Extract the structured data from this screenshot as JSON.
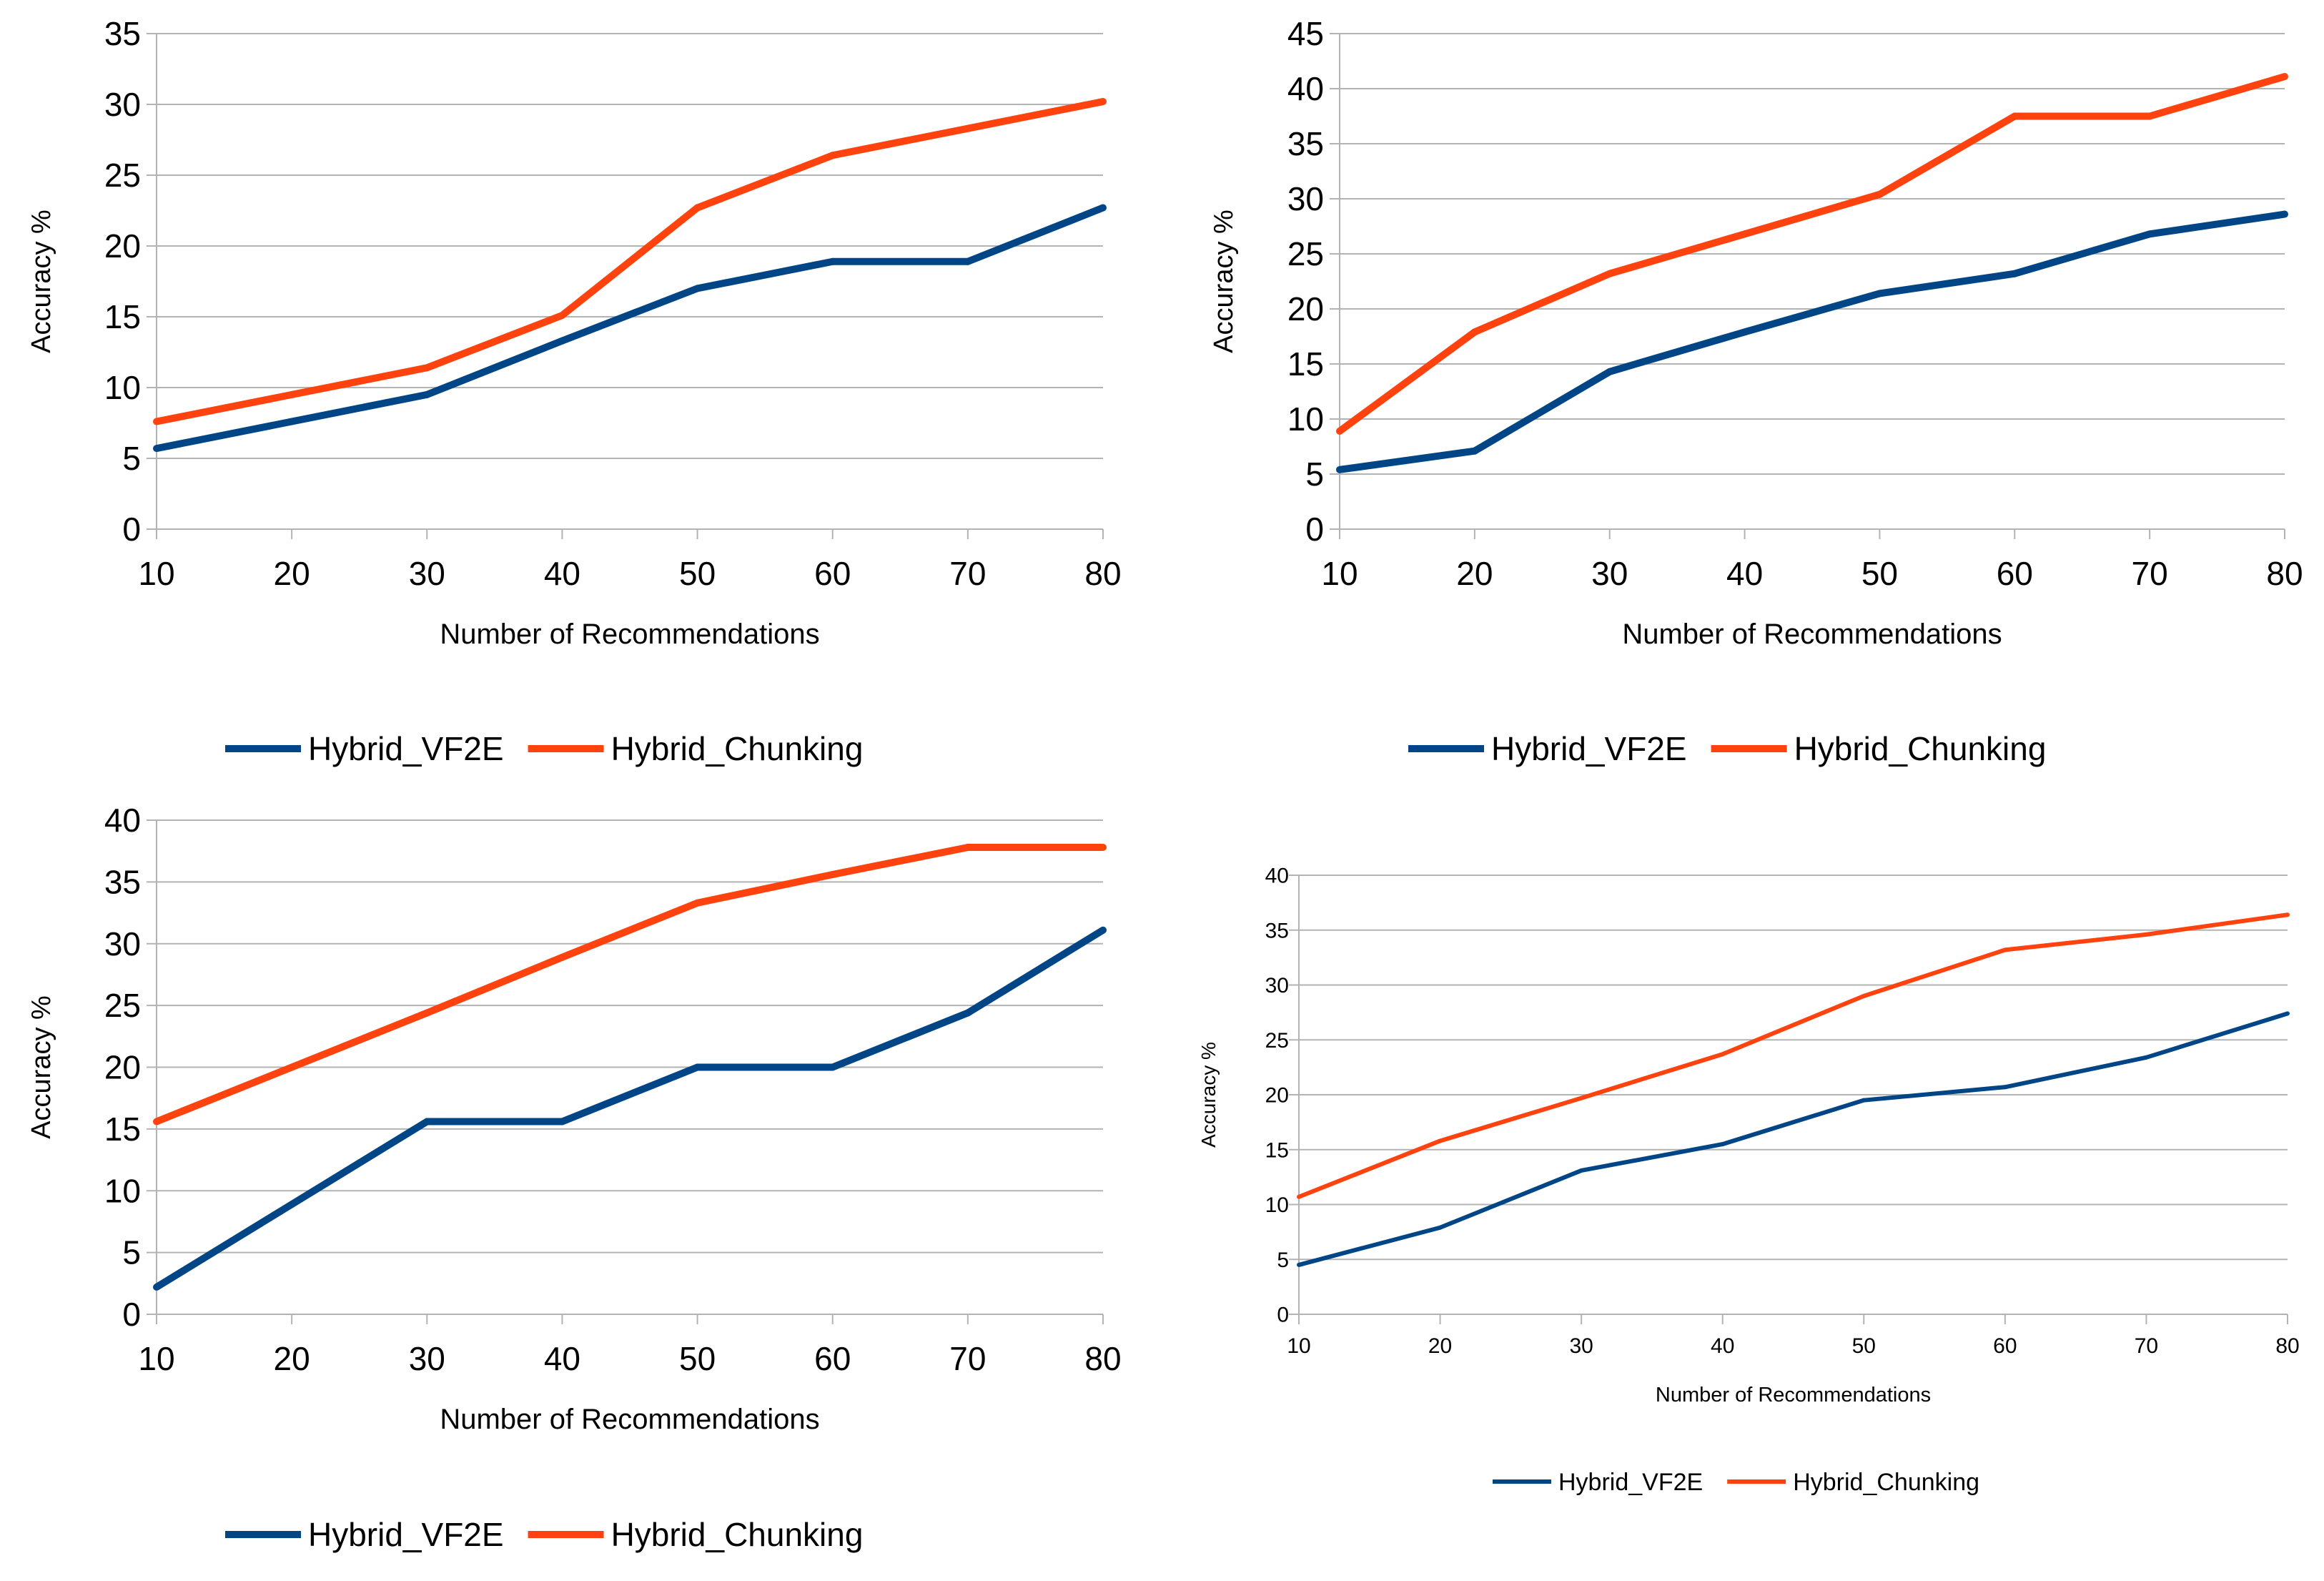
{
  "colors": {
    "series": [
      "#004586",
      "#ff420e"
    ],
    "grid": "#b3b3b3",
    "axis": "#b3b3b3",
    "background": "#ffffff"
  },
  "chart_data": [
    {
      "type": "line",
      "position": "top-left",
      "title": "",
      "xlabel": "Number of Recommendations",
      "ylabel": "Accuracy %",
      "x": [
        10,
        20,
        30,
        40,
        50,
        60,
        70,
        80
      ],
      "xlim": [
        10,
        80
      ],
      "ylim": [
        0,
        35
      ],
      "yticks": [
        0,
        5,
        10,
        15,
        20,
        25,
        30,
        35
      ],
      "grid": true,
      "legend": "bottom",
      "series": [
        {
          "name": "Hybrid_VF2E",
          "values": [
            5.7,
            7.6,
            9.5,
            13.3,
            17.0,
            18.9,
            18.9,
            22.7
          ]
        },
        {
          "name": "Hybrid_Chunking",
          "values": [
            7.6,
            9.5,
            11.4,
            15.1,
            22.7,
            26.4,
            28.3,
            30.2
          ]
        }
      ]
    },
    {
      "type": "line",
      "position": "top-right",
      "title": "",
      "xlabel": "Number of Recommendations",
      "ylabel": "Accuracy %",
      "x": [
        10,
        20,
        30,
        40,
        50,
        60,
        70,
        80
      ],
      "xlim": [
        10,
        80
      ],
      "ylim": [
        0,
        45
      ],
      "yticks": [
        0,
        5,
        10,
        15,
        20,
        25,
        30,
        35,
        40,
        45
      ],
      "grid": true,
      "legend": "bottom",
      "series": [
        {
          "name": "Hybrid_VF2E",
          "values": [
            5.4,
            7.1,
            14.3,
            17.9,
            21.4,
            23.2,
            26.8,
            28.6
          ]
        },
        {
          "name": "Hybrid_Chunking",
          "values": [
            8.9,
            17.9,
            23.2,
            26.8,
            30.4,
            37.5,
            37.5,
            41.1
          ]
        }
      ]
    },
    {
      "type": "line",
      "position": "bottom-left",
      "title": "",
      "xlabel": "Number of Recommendations",
      "ylabel": "Accuracy %",
      "x": [
        10,
        20,
        30,
        40,
        50,
        60,
        70,
        80
      ],
      "xlim": [
        10,
        80
      ],
      "ylim": [
        0,
        40
      ],
      "yticks": [
        0,
        5,
        10,
        15,
        20,
        25,
        30,
        35,
        40
      ],
      "grid": true,
      "legend": "bottom",
      "series": [
        {
          "name": "Hybrid_VF2E",
          "values": [
            2.2,
            8.9,
            15.6,
            15.6,
            20.0,
            20.0,
            24.4,
            31.1
          ]
        },
        {
          "name": "Hybrid_Chunking",
          "values": [
            15.6,
            20.0,
            24.4,
            28.9,
            33.3,
            35.6,
            37.8,
            37.8
          ]
        }
      ]
    },
    {
      "type": "line",
      "position": "bottom-right",
      "title": "",
      "xlabel": "Number of Recommendations",
      "ylabel": "Accuracy %",
      "x": [
        10,
        20,
        30,
        40,
        50,
        60,
        70,
        80
      ],
      "xlim": [
        10,
        80
      ],
      "ylim": [
        0,
        40
      ],
      "yticks": [
        0,
        5,
        10,
        15,
        20,
        25,
        30,
        35,
        40
      ],
      "grid": true,
      "legend": "bottom",
      "series": [
        {
          "name": "Hybrid_VF2E",
          "values": [
            4.5,
            7.9,
            13.1,
            15.5,
            19.5,
            20.7,
            23.4,
            27.4
          ]
        },
        {
          "name": "Hybrid_Chunking",
          "values": [
            10.7,
            15.8,
            19.7,
            23.7,
            29.0,
            33.2,
            34.6,
            36.4
          ]
        }
      ]
    }
  ]
}
